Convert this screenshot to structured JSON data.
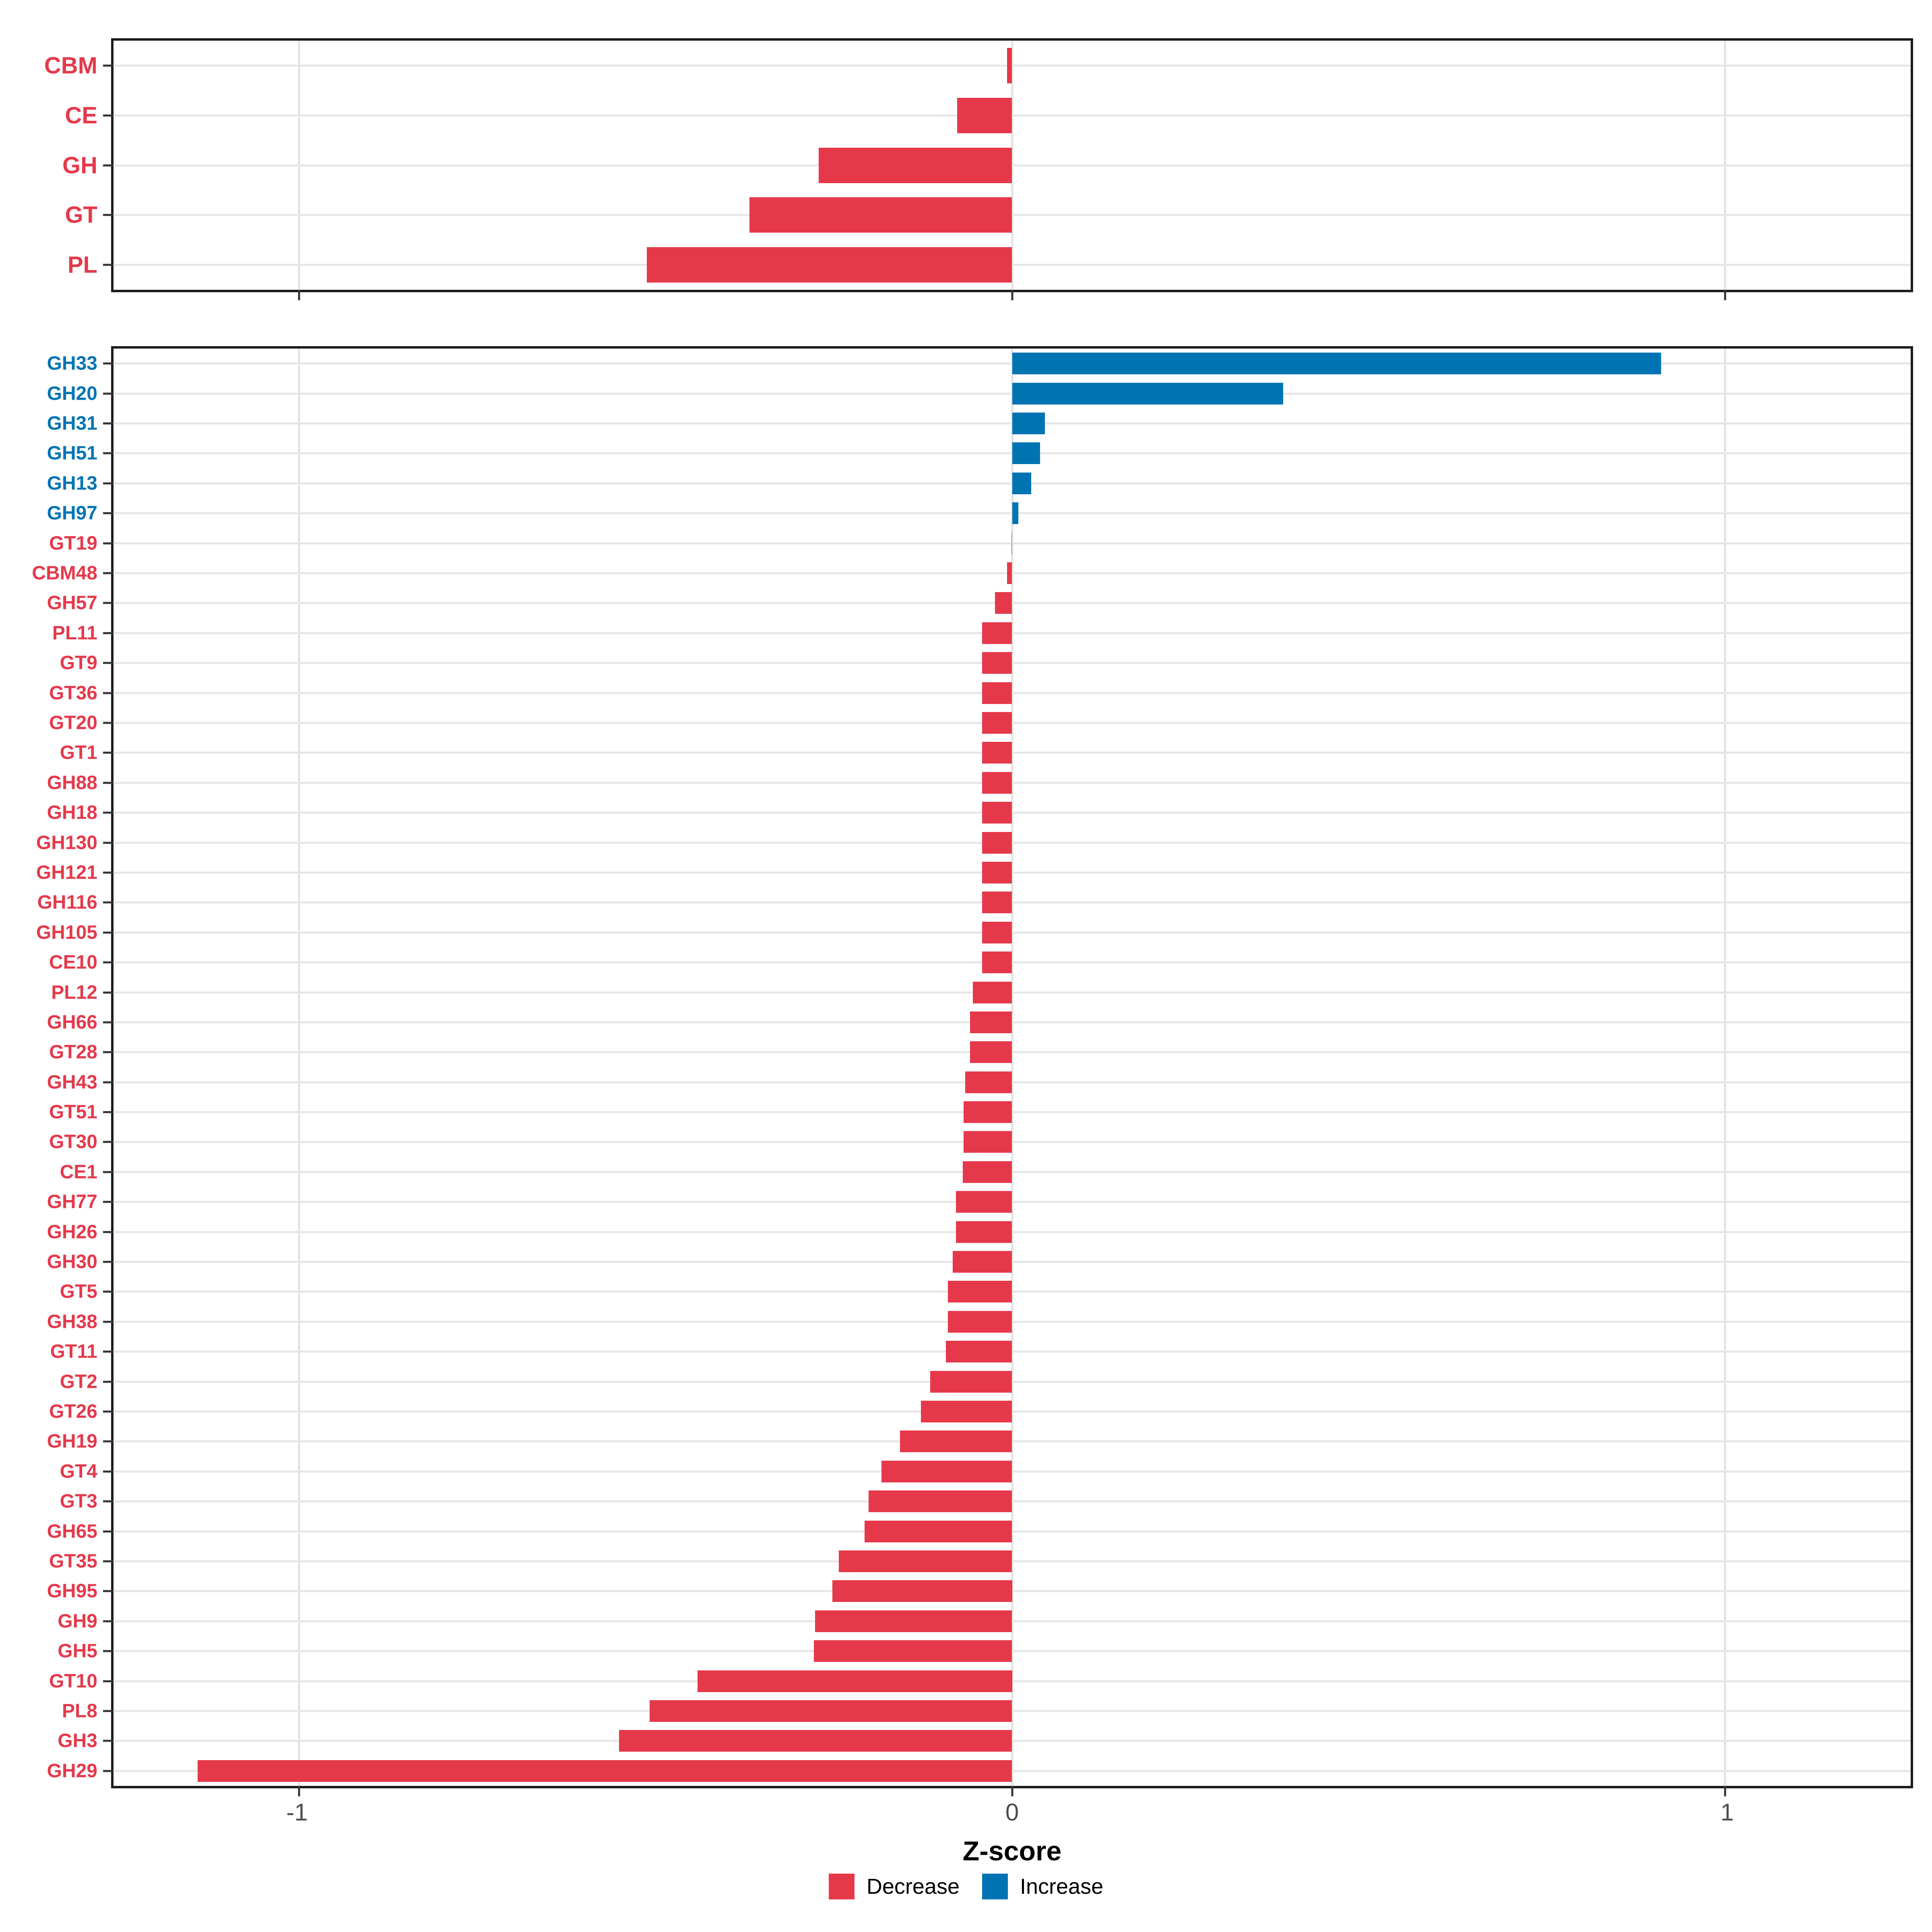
{
  "figure": {
    "x_axis_title": "Z-score",
    "colors": {
      "decrease": "#E5394B",
      "increase": "#0074B3",
      "grid": "#E2E2E2",
      "panel_border": "#1C1C1C",
      "tick_label": "#4D4D4D"
    },
    "x_tick_labels": [
      "-1",
      "0",
      "1"
    ],
    "x_tick_values": [
      -1,
      0,
      1
    ],
    "legend": [
      {
        "label": "Decrease",
        "color": "#E5394B"
      },
      {
        "label": "Increase",
        "color": "#0074B3"
      }
    ]
  },
  "chart_data": [
    {
      "type": "bar",
      "orientation": "horizontal",
      "panel": "cazyme-classes",
      "xlabel": "Z-score",
      "xlim": [
        -1.26,
        1.26
      ],
      "grid": true,
      "categories": [
        "CBM",
        "CE",
        "GH",
        "GT",
        "PL"
      ],
      "values": [
        -0.007,
        -0.077,
        -0.271,
        -0.368,
        -0.512
      ],
      "groups": [
        "decrease",
        "decrease",
        "decrease",
        "decrease",
        "decrease"
      ]
    },
    {
      "type": "bar",
      "orientation": "horizontal",
      "panel": "cazyme-families",
      "xlabel": "Z-score",
      "xlim": [
        -1.26,
        1.26
      ],
      "grid": true,
      "categories": [
        "GH33",
        "GH20",
        "GH31",
        "GH51",
        "GH13",
        "GH97",
        "GT19",
        "CBM48",
        "GH57",
        "PL11",
        "GT9",
        "GT36",
        "GT20",
        "GT1",
        "GH88",
        "GH18",
        "GH130",
        "GH121",
        "GH116",
        "GH105",
        "CE10",
        "PL12",
        "GH66",
        "GT28",
        "GH43",
        "GT51",
        "GT30",
        "CE1",
        "GH77",
        "GH26",
        "GH30",
        "GT5",
        "GH38",
        "GT11",
        "GT2",
        "GT26",
        "GH19",
        "GT4",
        "GT3",
        "GH65",
        "GT35",
        "GH95",
        "GH9",
        "GH5",
        "GT10",
        "PL8",
        "GH3",
        "GH29"
      ],
      "values": [
        0.91,
        0.38,
        0.046,
        0.039,
        0.027,
        0.009,
        -0.001,
        -0.007,
        -0.024,
        -0.042,
        -0.042,
        -0.042,
        -0.042,
        -0.042,
        -0.042,
        -0.042,
        -0.042,
        -0.042,
        -0.042,
        -0.042,
        -0.042,
        -0.055,
        -0.059,
        -0.059,
        -0.066,
        -0.068,
        -0.068,
        -0.069,
        -0.079,
        -0.079,
        -0.083,
        -0.09,
        -0.09,
        -0.093,
        -0.115,
        -0.128,
        -0.157,
        -0.183,
        -0.201,
        -0.207,
        -0.243,
        -0.252,
        -0.276,
        -0.278,
        -0.441,
        -0.508,
        -0.551,
        -1.142
      ],
      "groups": [
        "increase",
        "increase",
        "increase",
        "increase",
        "increase",
        "increase",
        "decrease",
        "decrease",
        "decrease",
        "decrease",
        "decrease",
        "decrease",
        "decrease",
        "decrease",
        "decrease",
        "decrease",
        "decrease",
        "decrease",
        "decrease",
        "decrease",
        "decrease",
        "decrease",
        "decrease",
        "decrease",
        "decrease",
        "decrease",
        "decrease",
        "decrease",
        "decrease",
        "decrease",
        "decrease",
        "decrease",
        "decrease",
        "decrease",
        "decrease",
        "decrease",
        "decrease",
        "decrease",
        "decrease",
        "decrease",
        "decrease",
        "decrease",
        "decrease",
        "decrease",
        "decrease",
        "decrease",
        "decrease",
        "decrease"
      ]
    }
  ]
}
